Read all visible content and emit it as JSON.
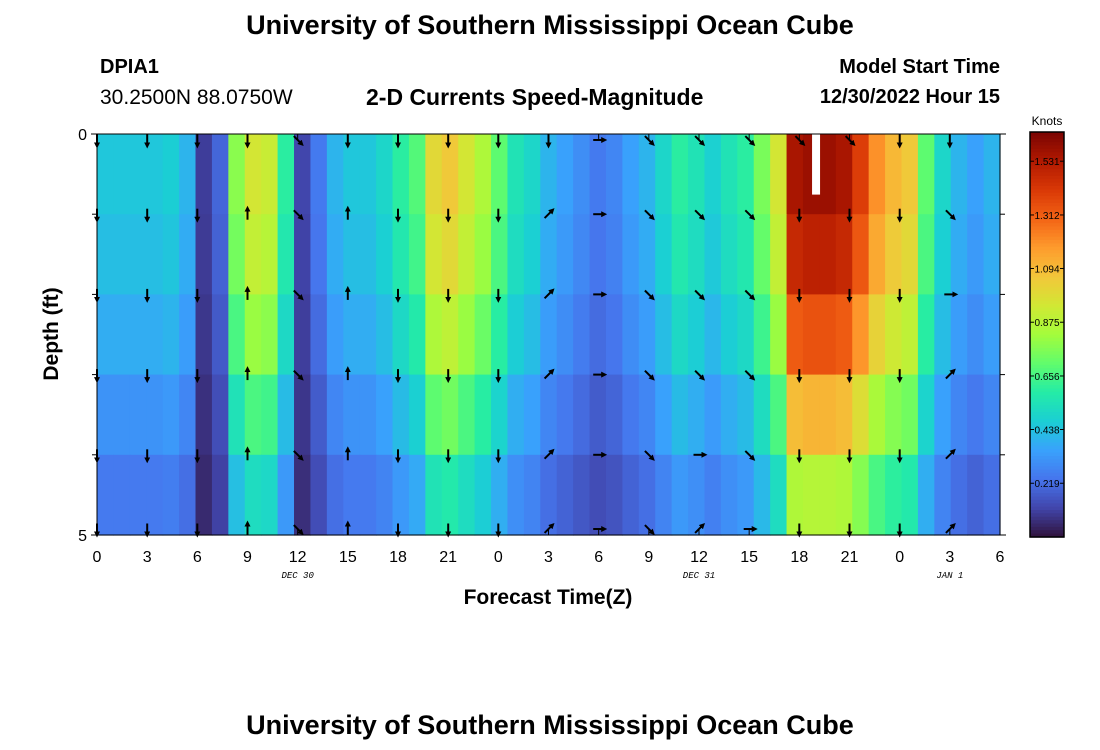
{
  "header": {
    "title": "University of Southern Mississippi Ocean Cube",
    "station_id": "DPIA1",
    "coordinates": "30.2500N  88.0750W",
    "plot_title": "2-D Currents Speed-Magnitude",
    "model_start_label": "Model Start Time",
    "model_start_value": "12/30/2022 Hour 15"
  },
  "footer": {
    "title": "University of Southern Mississippi Ocean Cube"
  },
  "colors": {
    "arrow": "#000000",
    "missing": "#ffffff",
    "colormap": [
      "#30123b",
      "#4145ab",
      "#4675ed",
      "#39a2fc",
      "#1bcfd4",
      "#24eca6",
      "#61fc6c",
      "#a4fc3b",
      "#d1e834",
      "#f3c63a",
      "#fe9b2d",
      "#f36315",
      "#d93806",
      "#b11901",
      "#7a0402"
    ]
  },
  "chart_data": {
    "type": "heatmap",
    "title": "2-D Currents Speed-Magnitude",
    "xlabel": "Forecast Time(Z)",
    "ylabel": "Depth (ft)",
    "x_hours": [
      0,
      54
    ],
    "x_ticks": [
      "0",
      "3",
      "6",
      "9",
      "12",
      "15",
      "18",
      "21",
      "0",
      "3",
      "6",
      "9",
      "12",
      "15",
      "18",
      "21",
      "0",
      "3",
      "6"
    ],
    "date_labels": [
      {
        "hour": 12,
        "text": "DEC 30"
      },
      {
        "hour": 36,
        "text": "DEC 31"
      },
      {
        "hour": 51,
        "text": "JAN 1"
      }
    ],
    "y_range": [
      0,
      5
    ],
    "y_ticks": [
      {
        "value": 0,
        "label": "0"
      },
      {
        "value": 5,
        "label": "5"
      }
    ],
    "y_minor_ticks": [
      1,
      2,
      3,
      4
    ],
    "colorbar": {
      "label": "Knots",
      "min": 0.0,
      "max": 1.65,
      "ticks": [
        0.219,
        0.438,
        0.656,
        0.875,
        1.094,
        1.312,
        1.531
      ]
    },
    "depth_rows": 5,
    "time_columns": 55,
    "speed_profile_surface": [
      0.45,
      0.45,
      0.45,
      0.45,
      0.47,
      0.4,
      0.1,
      0.2,
      0.78,
      0.95,
      0.92,
      0.6,
      0.12,
      0.25,
      0.4,
      0.45,
      0.45,
      0.5,
      0.6,
      0.68,
      1.0,
      1.05,
      0.95,
      0.85,
      0.7,
      0.55,
      0.5,
      0.4,
      0.35,
      0.3,
      0.25,
      0.28,
      0.35,
      0.4,
      0.5,
      0.6,
      0.55,
      0.48,
      0.55,
      0.6,
      0.75,
      0.95,
      1.55,
      1.58,
      1.58,
      1.55,
      1.4,
      1.2,
      1.1,
      1.05,
      0.7,
      0.5,
      0.4,
      0.35,
      0.4
    ],
    "row_scale": [
      1.0,
      0.95,
      0.85,
      0.7,
      0.55
    ],
    "missing_cells": [
      {
        "row": 0,
        "hour": 43
      }
    ],
    "arrow_hours": [
      0,
      3,
      6,
      9,
      12,
      15,
      18,
      21,
      24,
      27,
      30,
      33,
      36,
      39,
      42,
      45,
      48,
      51
    ],
    "arrow_depths": [
      0,
      1,
      2,
      3,
      4,
      5
    ],
    "arrow_directions_deg": [
      [
        180,
        180,
        180,
        180,
        135,
        180,
        180,
        180,
        180,
        180,
        90,
        135,
        135,
        135,
        135,
        135,
        180,
        180
      ],
      [
        180,
        180,
        180,
        0,
        135,
        0,
        180,
        180,
        180,
        45,
        90,
        135,
        135,
        135,
        180,
        180,
        180,
        135
      ],
      [
        180,
        180,
        180,
        0,
        135,
        0,
        180,
        180,
        180,
        45,
        90,
        135,
        135,
        135,
        180,
        180,
        180,
        90
      ],
      [
        180,
        180,
        180,
        0,
        135,
        0,
        180,
        180,
        180,
        45,
        90,
        135,
        135,
        135,
        180,
        180,
        180,
        45
      ],
      [
        180,
        180,
        180,
        0,
        135,
        0,
        180,
        180,
        180,
        45,
        90,
        135,
        90,
        135,
        180,
        180,
        180,
        45
      ],
      [
        180,
        180,
        180,
        0,
        135,
        0,
        180,
        180,
        180,
        45,
        90,
        135,
        45,
        90,
        180,
        180,
        180,
        45
      ]
    ]
  }
}
